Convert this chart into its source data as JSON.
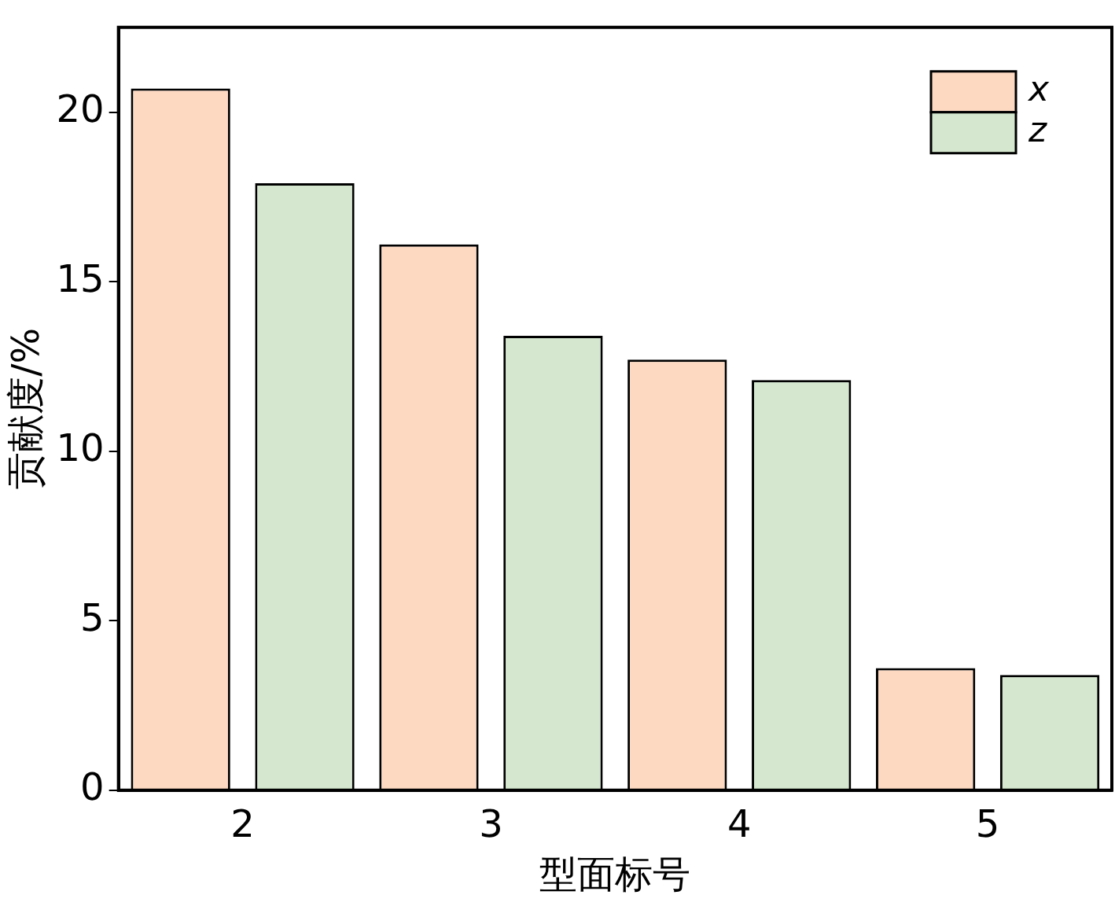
{
  "chart_data": {
    "type": "bar",
    "xlabel": "型面标号",
    "ylabel": "贡献度/%",
    "categories": [
      "2",
      "3",
      "4",
      "5"
    ],
    "series": [
      {
        "name": "x",
        "color": "#fdd9c1",
        "values": [
          20.7,
          16.1,
          12.7,
          3.6
        ]
      },
      {
        "name": "z",
        "color": "#d5e8cf",
        "values": [
          17.9,
          13.4,
          12.1,
          3.4
        ]
      }
    ],
    "ylim": [
      0,
      22.5
    ],
    "yticks": [
      0,
      5,
      10,
      15,
      20
    ],
    "grid": false,
    "legend": "top right"
  }
}
